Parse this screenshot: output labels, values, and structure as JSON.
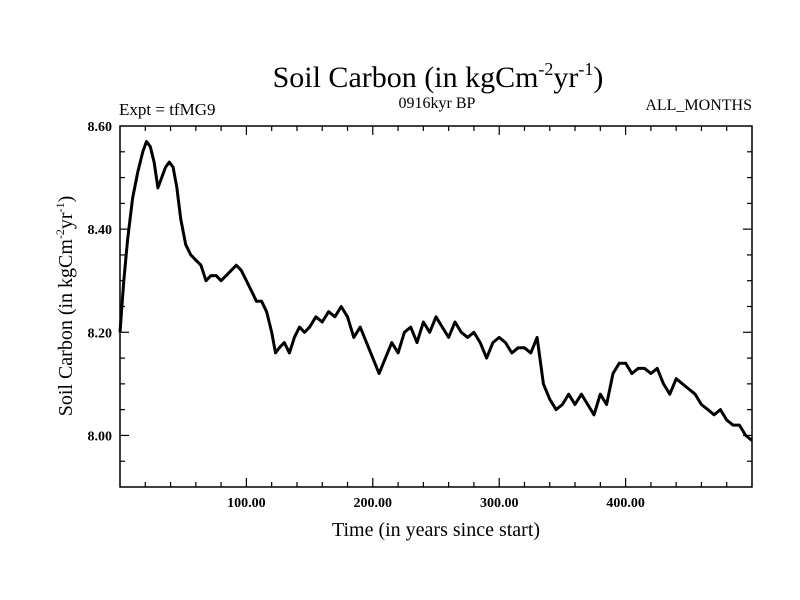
{
  "chart_data": {
    "type": "line",
    "title": {
      "main": "Soil Carbon (in kgCm",
      "sup1": "-2",
      "mid": "yr",
      "sup2": "-1",
      "end": ")"
    },
    "subtitle_left": "Expt = tfMG9",
    "subtitle_center": "0916kyr BP",
    "subtitle_right": "ALL_MONTHS",
    "xlabel": "Time (in years since start)",
    "ylabel": {
      "main": "Soil Carbon (in kgCm",
      "sup1": "-2",
      "mid": "yr",
      "sup2": "-1",
      "end": ")"
    },
    "xlim": [
      0,
      500
    ],
    "ylim": [
      7.9,
      8.6
    ],
    "xticks": [
      100,
      200,
      300,
      400
    ],
    "xtick_labels": [
      "100.00",
      "200.00",
      "300.00",
      "400.00"
    ],
    "yticks": [
      8.0,
      8.2,
      8.4,
      8.6
    ],
    "ytick_labels": [
      "8.00",
      "8.20",
      "8.40",
      "8.60"
    ],
    "series": [
      {
        "name": "Soil Carbon",
        "color": "#000000",
        "x": [
          0,
          3,
          6,
          10,
          14,
          18,
          21,
          24,
          27,
          30,
          33,
          36,
          39,
          42,
          45,
          48,
          52,
          56,
          60,
          64,
          68,
          72,
          76,
          80,
          84,
          88,
          92,
          96,
          100,
          104,
          108,
          112,
          116,
          120,
          123,
          126,
          130,
          134,
          138,
          142,
          146,
          150,
          155,
          160,
          165,
          170,
          175,
          180,
          185,
          190,
          195,
          200,
          205,
          210,
          215,
          220,
          225,
          230,
          235,
          240,
          245,
          250,
          255,
          260,
          265,
          270,
          275,
          280,
          285,
          290,
          295,
          300,
          305,
          310,
          315,
          320,
          325,
          330,
          335,
          340,
          345,
          350,
          355,
          360,
          365,
          370,
          375,
          380,
          385,
          390,
          395,
          400,
          405,
          410,
          415,
          420,
          425,
          430,
          435,
          440,
          445,
          450,
          455,
          460,
          465,
          470,
          475,
          480,
          485,
          490,
          495,
          500
        ],
        "y": [
          8.2,
          8.3,
          8.38,
          8.46,
          8.51,
          8.55,
          8.57,
          8.56,
          8.53,
          8.48,
          8.5,
          8.52,
          8.53,
          8.52,
          8.48,
          8.42,
          8.37,
          8.35,
          8.34,
          8.33,
          8.3,
          8.31,
          8.31,
          8.3,
          8.31,
          8.32,
          8.33,
          8.32,
          8.3,
          8.28,
          8.26,
          8.26,
          8.24,
          8.2,
          8.16,
          8.17,
          8.18,
          8.16,
          8.19,
          8.21,
          8.2,
          8.21,
          8.23,
          8.22,
          8.24,
          8.23,
          8.25,
          8.23,
          8.19,
          8.21,
          8.18,
          8.15,
          8.12,
          8.15,
          8.18,
          8.16,
          8.2,
          8.21,
          8.18,
          8.22,
          8.2,
          8.23,
          8.21,
          8.19,
          8.22,
          8.2,
          8.19,
          8.2,
          8.18,
          8.15,
          8.18,
          8.19,
          8.18,
          8.16,
          8.17,
          8.17,
          8.16,
          8.19,
          8.1,
          8.07,
          8.05,
          8.06,
          8.08,
          8.06,
          8.08,
          8.06,
          8.04,
          8.08,
          8.06,
          8.12,
          8.14,
          8.14,
          8.12,
          8.13,
          8.13,
          8.12,
          8.13,
          8.1,
          8.08,
          8.11,
          8.1,
          8.09,
          8.08,
          8.06,
          8.05,
          8.04,
          8.05,
          8.03,
          8.02,
          8.02,
          8.0,
          7.99
        ]
      }
    ]
  }
}
